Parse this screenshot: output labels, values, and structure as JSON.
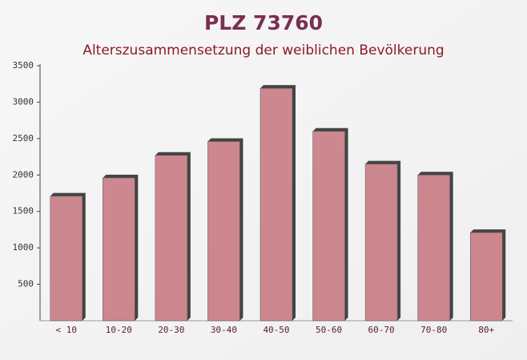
{
  "chart_data": {
    "type": "bar",
    "title": "PLZ 73760",
    "subtitle": "Alterszusammensetzung der weiblichen Bevölkerung",
    "categories": [
      "< 10",
      "10-20",
      "20-30",
      "30-40",
      "40-50",
      "50-60",
      "60-70",
      "70-80",
      "80+"
    ],
    "values": [
      1710,
      1960,
      2270,
      2460,
      3190,
      2600,
      2150,
      2000,
      1210
    ],
    "color": "#c4737c",
    "ylim": [
      0,
      3500
    ],
    "yticks": [
      500,
      1000,
      1500,
      2000,
      2500,
      3000,
      3500
    ],
    "grid": false
  }
}
